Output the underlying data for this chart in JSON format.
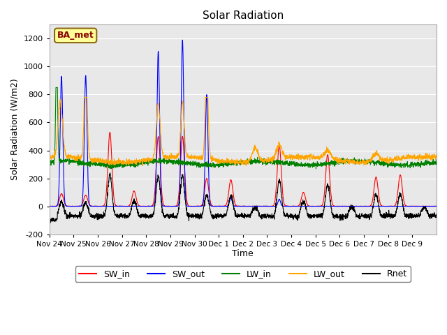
{
  "title": "Solar Radiation",
  "ylabel": "Solar Radiation (W/m2)",
  "xlabel": "Time",
  "ylim": [
    -200,
    1300
  ],
  "yticks": [
    -200,
    0,
    200,
    400,
    600,
    800,
    1000,
    1200
  ],
  "plot_bg_color": "#e8e8e8",
  "annotation_text": "BA_met",
  "annotation_color": "#8B0000",
  "annotation_bg": "#ffff99",
  "legend_entries": [
    "SW_in",
    "SW_out",
    "LW_in",
    "LW_out",
    "Rnet"
  ],
  "line_colors": [
    "red",
    "blue",
    "green",
    "orange",
    "black"
  ],
  "x_tick_labels": [
    "Nov 24",
    "Nov 25",
    "Nov 26",
    "Nov 27",
    "Nov 28",
    "Nov 29",
    "Nov 30",
    "Dec 1",
    "Dec 2",
    "Dec 3",
    "Dec 4",
    "Dec 5",
    "Dec 6",
    "Dec 7",
    "Dec 8",
    "Dec 9"
  ],
  "n_days": 16,
  "pts_per_day": 144
}
